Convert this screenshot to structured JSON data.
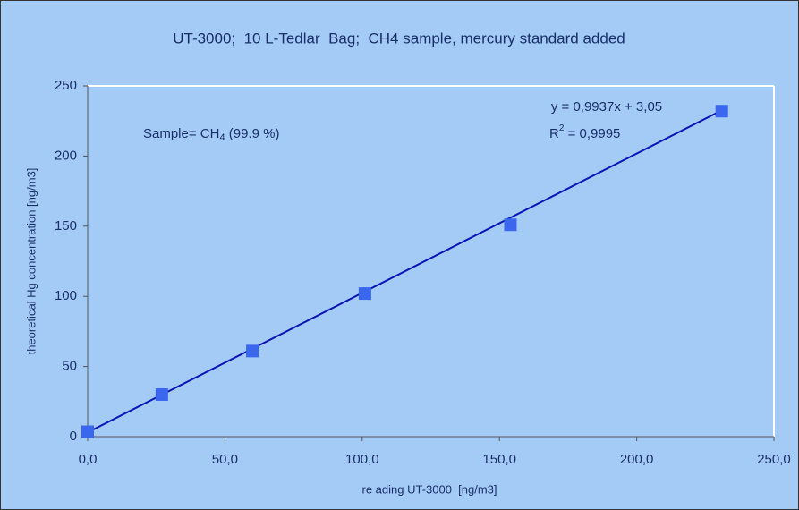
{
  "chart_data": {
    "type": "scatter",
    "title": "UT-3000;  10 L-Tedlar  Bag;  CH4 sample, mercury standard added",
    "xlabel": "re ading UT-3000  [ng/m3]",
    "ylabel": "theoretical Hg concentration [ng/m3]",
    "series": [
      {
        "name": "CH4 sample",
        "color": "#3a67ee",
        "x": [
          0,
          27,
          60,
          101,
          154,
          231
        ],
        "values": [
          3.5,
          30,
          61,
          102,
          151,
          232
        ]
      }
    ],
    "trendline": {
      "slope": 0.9937,
      "intercept": 3.05,
      "label": "y = 0,9937x + 3,05",
      "color": "#0a14b8"
    },
    "r_squared": {
      "base": "R",
      "exponent": "2",
      "rest": " = 0,9995"
    },
    "sample_note": {
      "base": "Sample= CH",
      "subscript": "4",
      "rest": " (99.9 %)"
    },
    "xlim": [
      0,
      250
    ],
    "xticks": [
      {
        "value": 0,
        "label": "0,0"
      },
      {
        "value": 50,
        "label": "50,0"
      },
      {
        "value": 100,
        "label": "100,0"
      },
      {
        "value": 150,
        "label": "150,0"
      },
      {
        "value": 200,
        "label": "200,0"
      },
      {
        "value": 250,
        "label": "250,0"
      }
    ],
    "ylim": [
      0,
      250
    ],
    "yticks": [
      0,
      50,
      100,
      150,
      200,
      250
    ],
    "grid": false
  }
}
